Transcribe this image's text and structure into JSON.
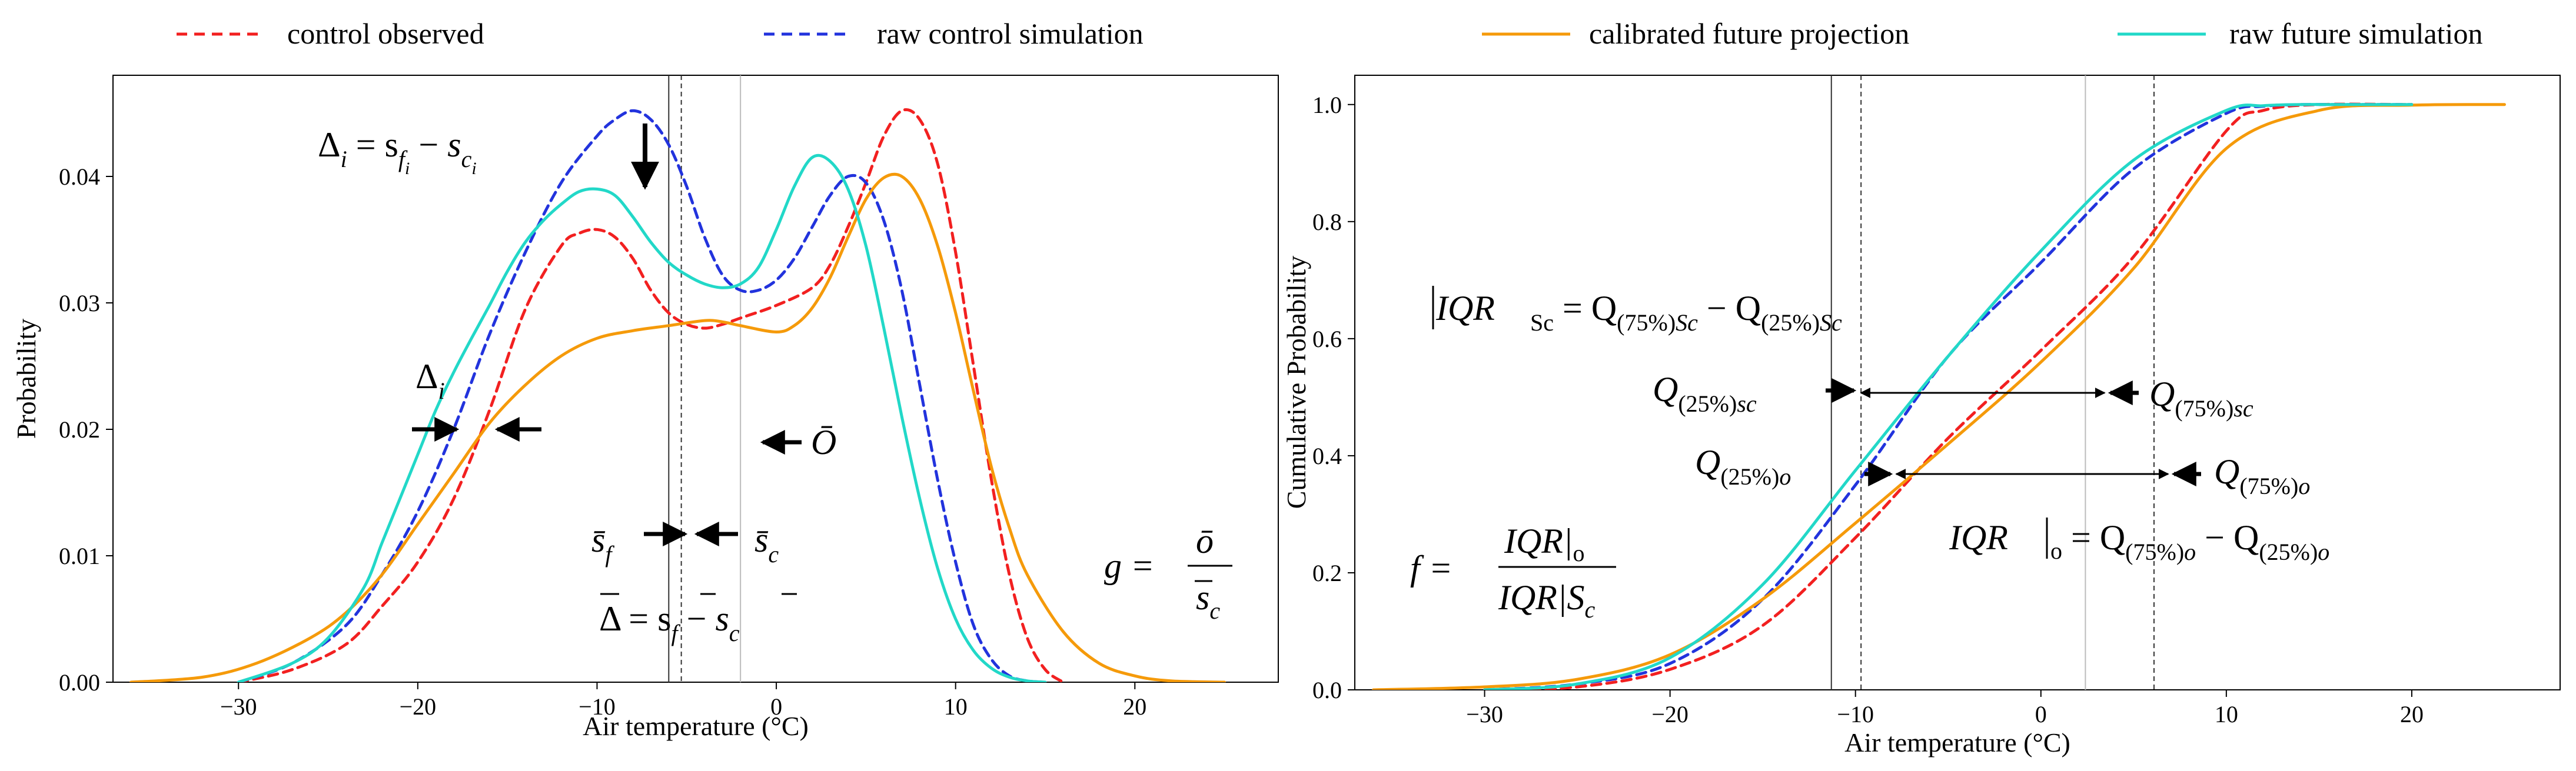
{
  "colors": {
    "control_observed": "#f22020",
    "raw_control_simulation": "#2233dd",
    "calibrated_future_projection": "#f59a0a",
    "raw_future_simulation": "#22d8c8"
  },
  "legend": {
    "control_observed": "control observed",
    "raw_control_simulation": "raw control simulation",
    "calibrated_future_projection": "calibrated future projection",
    "raw_future_simulation": "raw future simulation"
  },
  "chart_data": [
    {
      "type": "line",
      "panel": "left",
      "xlabel": "Air temperature (°C)",
      "ylabel": "Probability",
      "xlim": [
        -37,
        28
      ],
      "ylim": [
        0,
        0.048
      ],
      "xticks": [
        -30,
        -20,
        -10,
        0,
        10,
        20
      ],
      "xtick_labels": [
        "−30",
        "−20",
        "−10",
        "0",
        "10",
        "20"
      ],
      "yticks": [
        0,
        0.01,
        0.02,
        0.03,
        0.04
      ],
      "ytick_labels": [
        "0.00",
        "0.01",
        "0.02",
        "0.03",
        "0.04"
      ],
      "series": [
        {
          "name": "control observed",
          "style": "dashed",
          "x": [
            -30,
            -27,
            -24,
            -22,
            -20,
            -18,
            -16,
            -14,
            -12,
            -11,
            -10,
            -9,
            -8,
            -7,
            -6,
            -5,
            -4,
            -3,
            -2,
            0,
            2,
            3,
            4,
            5,
            6,
            7,
            8,
            9,
            10,
            11,
            12,
            13,
            14,
            15,
            16
          ],
          "y": [
            0,
            0.001,
            0.003,
            0.006,
            0.0095,
            0.0145,
            0.0215,
            0.0295,
            0.0345,
            0.0355,
            0.0358,
            0.0352,
            0.0335,
            0.031,
            0.0292,
            0.0283,
            0.028,
            0.0283,
            0.0288,
            0.0298,
            0.0312,
            0.033,
            0.036,
            0.0395,
            0.0432,
            0.0452,
            0.0445,
            0.041,
            0.034,
            0.025,
            0.016,
            0.0085,
            0.0035,
            0.001,
            0
          ]
        },
        {
          "name": "raw control simulation",
          "style": "dashed",
          "x": [
            -30,
            -27,
            -24,
            -22,
            -20,
            -18,
            -16,
            -14,
            -12,
            -10,
            -9,
            -8,
            -7,
            -6,
            -5,
            -4,
            -3,
            -2,
            -1,
            0,
            1,
            2,
            3,
            4,
            5,
            6,
            7,
            8,
            9,
            10,
            11,
            12,
            13,
            14,
            15
          ],
          "y": [
            0,
            0.0015,
            0.0045,
            0.0085,
            0.0135,
            0.02,
            0.0275,
            0.034,
            0.0395,
            0.0432,
            0.0445,
            0.0452,
            0.0445,
            0.0425,
            0.0392,
            0.0352,
            0.0322,
            0.031,
            0.031,
            0.0318,
            0.0335,
            0.036,
            0.0385,
            0.04,
            0.0395,
            0.0365,
            0.031,
            0.0235,
            0.016,
            0.0095,
            0.0045,
            0.0018,
            0.0005,
            0.0001,
            0
          ]
        },
        {
          "name": "calibrated future projection",
          "style": "solid",
          "x": [
            -36,
            -32,
            -29,
            -26,
            -24,
            -22,
            -20,
            -18,
            -16,
            -14,
            -12,
            -10,
            -8,
            -6,
            -4,
            -3,
            -2,
            0,
            1,
            2,
            3,
            4,
            5,
            6,
            7,
            8,
            9,
            10,
            11,
            12,
            13,
            14,
            16,
            18,
            20,
            22,
            25
          ],
          "y": [
            0,
            0.0004,
            0.0015,
            0.0035,
            0.0055,
            0.0085,
            0.0125,
            0.0165,
            0.0205,
            0.0235,
            0.0258,
            0.0272,
            0.0278,
            0.0282,
            0.0286,
            0.0285,
            0.0282,
            0.0277,
            0.0282,
            0.0296,
            0.032,
            0.0352,
            0.0382,
            0.0399,
            0.04,
            0.0382,
            0.0345,
            0.0292,
            0.023,
            0.017,
            0.0122,
            0.0085,
            0.004,
            0.0015,
            0.0005,
            0.0001,
            0
          ]
        },
        {
          "name": "raw future simulation",
          "style": "solid",
          "x": [
            -30,
            -27,
            -25,
            -23,
            -22,
            -21,
            -20,
            -19,
            -18,
            -17,
            -16,
            -15,
            -14,
            -13,
            -12,
            -11,
            -10,
            -9,
            -8,
            -7,
            -6,
            -5,
            -4,
            -3,
            -2,
            -1,
            0,
            1,
            2,
            3,
            4,
            5,
            6,
            7,
            8,
            9,
            10,
            11,
            12,
            13,
            14,
            15
          ],
          "y": [
            0,
            0.0015,
            0.0035,
            0.0075,
            0.011,
            0.0145,
            0.018,
            0.0215,
            0.0245,
            0.0272,
            0.0298,
            0.0325,
            0.0348,
            0.0365,
            0.0378,
            0.0388,
            0.039,
            0.0385,
            0.0368,
            0.0348,
            0.0332,
            0.0322,
            0.0315,
            0.0312,
            0.0315,
            0.0328,
            0.0358,
            0.0392,
            0.0415,
            0.0412,
            0.039,
            0.0345,
            0.028,
            0.021,
            0.0145,
            0.009,
            0.005,
            0.0025,
            0.0011,
            0.0004,
            0.0001,
            0
          ]
        }
      ],
      "vlines": [
        {
          "x": -6.0,
          "style": "solid",
          "color": "#333333"
        },
        {
          "x": -5.3,
          "style": "dashed",
          "color": "#333333"
        },
        {
          "x": -2.0,
          "style": "solid",
          "color": "#bbbbbb"
        }
      ],
      "annotations": {
        "delta_i_eq": {
          "base": "Δ",
          "sub": "i",
          "rest": " = s"
        },
        "delta_i_small": {
          "base": "Δ",
          "sub": "i"
        },
        "o_bar": "Ō",
        "s_f": {
          "base": "s",
          "sub": "f"
        },
        "s_c": {
          "base": "s",
          "sub": "c"
        },
        "delta_bar_eq": "Δ = s",
        "g_eq": "g =",
        "g_num": "ō",
        "g_den": "s",
        "minus": " − ",
        "f_i": "f",
        "i": "i",
        "c_i": "c",
        "f": "f",
        "c": "c"
      }
    },
    {
      "type": "line",
      "panel": "right",
      "xlabel": "Air temperature (°C)",
      "ylabel": "Cumulative Probability",
      "xlim": [
        -37,
        28
      ],
      "ylim": [
        0,
        1.05
      ],
      "xticks": [
        -30,
        -20,
        -10,
        0,
        10,
        20
      ],
      "xtick_labels": [
        "−30",
        "−20",
        "−10",
        "0",
        "10",
        "20"
      ],
      "yticks": [
        0,
        0.2,
        0.4,
        0.6,
        0.8,
        1.0
      ],
      "ytick_labels": [
        "0.0",
        "0.2",
        "0.4",
        "0.6",
        "0.8",
        "1.0"
      ],
      "series": [
        {
          "name": "control observed",
          "style": "dashed",
          "x": [
            -30,
            -25,
            -20,
            -15,
            -10,
            -5,
            0,
            5,
            10,
            12,
            15,
            20
          ],
          "y": [
            0,
            0.005,
            0.035,
            0.11,
            0.26,
            0.43,
            0.58,
            0.74,
            0.955,
            0.99,
            1.0,
            1.0
          ]
        },
        {
          "name": "raw control simulation",
          "style": "dashed",
          "x": [
            -30,
            -25,
            -20,
            -15,
            -10,
            -5,
            0,
            5,
            10,
            12,
            14,
            16,
            20
          ],
          "y": [
            0,
            0.01,
            0.045,
            0.155,
            0.35,
            0.57,
            0.73,
            0.89,
            0.985,
            0.997,
            1.0,
            1.0,
            1.0
          ]
        },
        {
          "name": "calibrated future projection",
          "style": "solid",
          "x": [
            -36,
            -30,
            -25,
            -20,
            -15,
            -10,
            -5,
            0,
            5,
            10,
            15,
            20,
            25
          ],
          "y": [
            0,
            0.005,
            0.018,
            0.06,
            0.155,
            0.285,
            0.42,
            0.56,
            0.72,
            0.925,
            0.99,
            0.999,
            1.0
          ]
        },
        {
          "name": "raw future simulation",
          "style": "solid",
          "x": [
            -30,
            -25,
            -20,
            -15,
            -10,
            -5,
            0,
            5,
            10,
            12,
            14,
            16,
            20
          ],
          "y": [
            0,
            0.01,
            0.055,
            0.18,
            0.375,
            0.57,
            0.75,
            0.905,
            0.99,
            0.998,
            1.0,
            1.0,
            1.0
          ]
        }
      ],
      "vlines": [
        {
          "x": -11.3,
          "style": "solid",
          "color": "#333333"
        },
        {
          "x": -9.7,
          "style": "dashed",
          "color": "#333333"
        },
        {
          "x": 2.4,
          "style": "solid",
          "color": "#bbbbbb"
        },
        {
          "x": 6.1,
          "style": "dashed",
          "color": "#333333"
        }
      ],
      "annotations": {
        "iqr_sc_eq": {
          "lhs": "IQR",
          "lhs_sub": "Sc",
          "mid": " = Q",
          "q1sub": "(75%)",
          "q1sub2": "Sc",
          "minus": " − Q",
          "q2sub": "(25%)",
          "q2sub2": "Sc"
        },
        "q25_sc": {
          "base": "Q",
          "sub": "(25%)",
          "sub2": "sc"
        },
        "q75_sc": {
          "base": "Q",
          "sub": "(75%)",
          "sub2": "sc"
        },
        "q25_o": {
          "base": "Q",
          "sub": "(25%)",
          "sub2": "o"
        },
        "q75_o": {
          "base": "Q",
          "sub": "(75%)",
          "sub2": "o"
        },
        "iqr_o_eq": {
          "lhs": "IQR",
          "lhs_sub": "o",
          "mid": " = Q",
          "q1sub": "(75%)",
          "q1sub2": "o",
          "minus": " − Q",
          "q2sub": "(25%)",
          "q2sub2": "o"
        },
        "f_eq": "f =",
        "f_num": "IQR|",
        "f_num_sub": "o",
        "f_den": "IQR|S",
        "f_den_sub": "c"
      }
    }
  ]
}
